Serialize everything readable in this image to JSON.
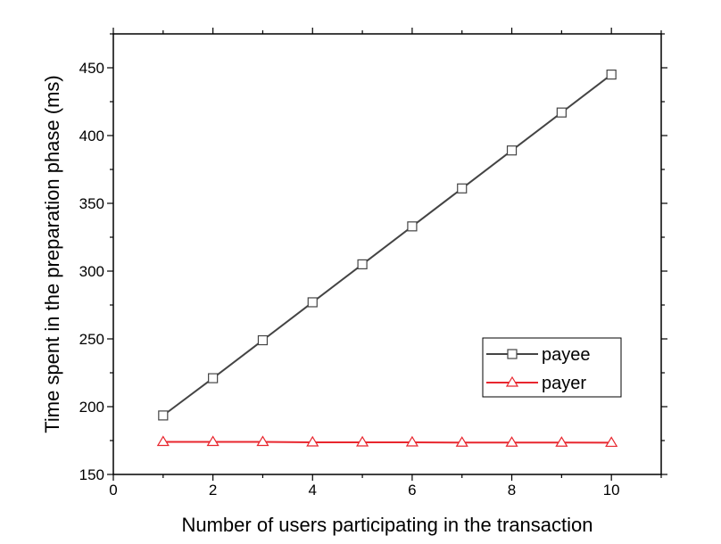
{
  "chart_data": {
    "type": "line",
    "title": "",
    "xlabel": "Number of users participating in the transaction",
    "ylabel": "Time spent in the preparation phase (ms)",
    "xlim": [
      0,
      11
    ],
    "ylim": [
      150,
      475
    ],
    "xticks": [
      0,
      2,
      4,
      6,
      8,
      10
    ],
    "yticks": [
      150,
      200,
      250,
      300,
      350,
      400,
      450
    ],
    "grid": false,
    "legend_position": "lower-right",
    "series": [
      {
        "name": "payee",
        "marker": "square",
        "color": "#444444",
        "x": [
          1,
          2,
          3,
          4,
          5,
          6,
          7,
          8,
          9,
          10
        ],
        "y": [
          193.5,
          221,
          249,
          277,
          305,
          333,
          361,
          389,
          417,
          445
        ]
      },
      {
        "name": "payer",
        "marker": "triangle",
        "color": "#e8262e",
        "x": [
          1,
          2,
          3,
          4,
          5,
          6,
          7,
          8,
          9,
          10
        ],
        "y": [
          174,
          174,
          174,
          173.7,
          173.7,
          173.7,
          173.5,
          173.5,
          173.5,
          173.4
        ]
      }
    ]
  }
}
